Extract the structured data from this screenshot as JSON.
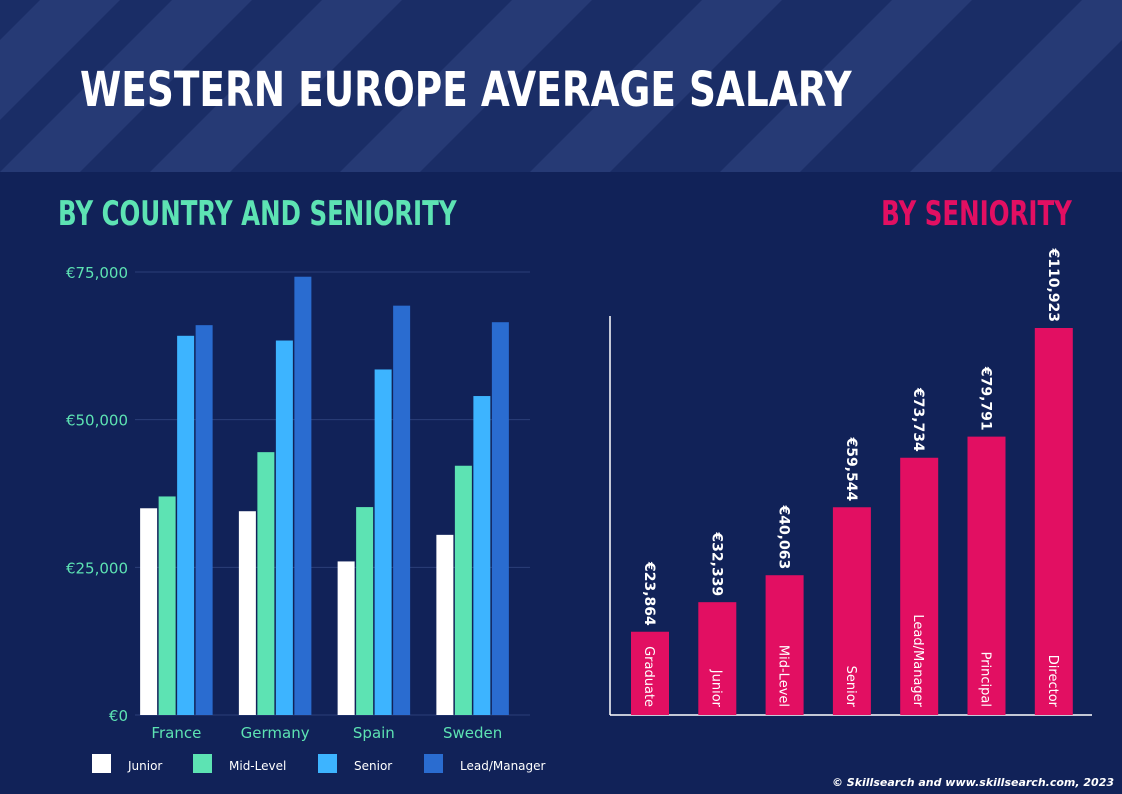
{
  "title": "WESTERN EUROPE AVERAGE SALARY",
  "left_subtitle": "BY COUNTRY AND SENIORITY",
  "right_subtitle": "BY SENIORITY",
  "copyright": "© Skillsearch and www.skillsearch.com, 2023",
  "colors": {
    "background": "#112258",
    "header": "#1a2d66",
    "stripe": "#263a75",
    "accent_green": "#5de3b3",
    "accent_pink": "#e20f62",
    "junior": "#ffffff",
    "mid_level": "#5de3b3",
    "senior": "#3db4ff",
    "lead_manager": "#2a6cd0"
  },
  "chart_data": [
    {
      "type": "bar",
      "title": "BY COUNTRY AND SENIORITY",
      "categories": [
        "France",
        "Germany",
        "Spain",
        "Sweden"
      ],
      "series": [
        {
          "name": "Junior",
          "color": "#ffffff",
          "values": [
            35000,
            34500,
            26000,
            30500
          ]
        },
        {
          "name": "Mid-Level",
          "color": "#5de3b3",
          "values": [
            37000,
            44500,
            35200,
            42200
          ]
        },
        {
          "name": "Senior",
          "color": "#3db4ff",
          "values": [
            64200,
            63400,
            58500,
            54000
          ]
        },
        {
          "name": "Lead/Manager",
          "color": "#2a6cd0",
          "values": [
            66000,
            74200,
            69300,
            66500
          ]
        }
      ],
      "yticks": [
        "€0",
        "€25,000",
        "€50,000",
        "€75,000"
      ],
      "ytick_values": [
        0,
        25000,
        50000,
        75000
      ],
      "ylim": [
        0,
        75000
      ],
      "grid": true,
      "legend": "bottom"
    },
    {
      "type": "bar",
      "title": "BY SENIORITY",
      "categories": [
        "Graduate",
        "Junior",
        "Mid-Level",
        "Senior",
        "Lead/Manager",
        "Principal",
        "Director"
      ],
      "values": [
        23864,
        32339,
        40063,
        59544,
        73734,
        79791,
        110923
      ],
      "value_labels": [
        "€23,864",
        "€32,339",
        "€40,063",
        "€59,544",
        "€73,734",
        "€79,791",
        "€110,923"
      ],
      "color": "#e20f62",
      "ylim": [
        0,
        110923
      ],
      "grid": false
    }
  ]
}
